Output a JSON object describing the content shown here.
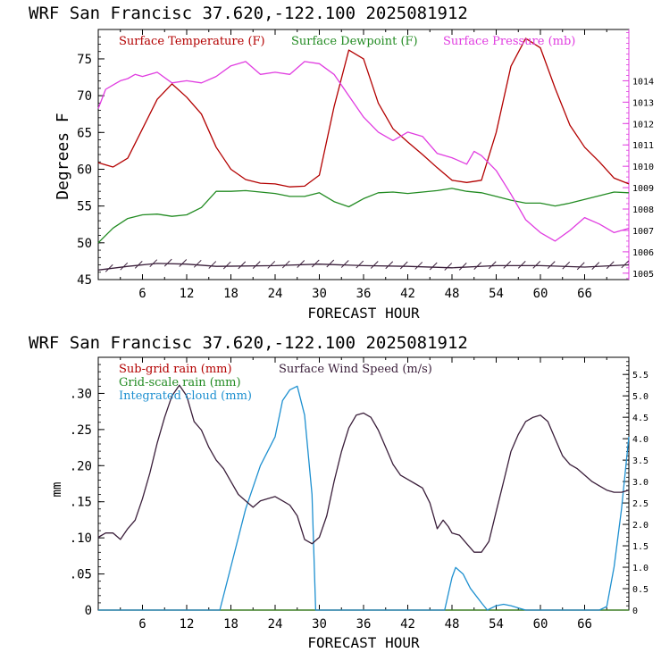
{
  "chart_data": [
    {
      "type": "line",
      "title": "WRF   San Francisc  37.620,-122.100  2025081912",
      "xlabel": "FORECAST HOUR",
      "ylabel": "Degrees F",
      "x_ticks": [
        "6",
        "12",
        "18",
        "24",
        "30",
        "36",
        "42",
        "48",
        "54",
        "60",
        "66"
      ],
      "xlim": [
        0,
        72
      ],
      "ylim": [
        45,
        79
      ],
      "y_ticks": [
        "45",
        "50",
        "55",
        "60",
        "65",
        "70",
        "75"
      ],
      "y2lim": [
        1004.7,
        1016.4
      ],
      "y2_ticks": [
        "1005",
        "1006",
        "1007",
        "1008",
        "1009",
        "1010",
        "1011",
        "1012",
        "1013",
        "1014"
      ],
      "series": [
        {
          "name": "Surface Temperature (F)",
          "color": "#b30000",
          "axis": "left",
          "points": [
            [
              0,
              60.9
            ],
            [
              2,
              60.3
            ],
            [
              4,
              61.5
            ],
            [
              6,
              65.5
            ],
            [
              8,
              69.5
            ],
            [
              10,
              71.6
            ],
            [
              12,
              69.8
            ],
            [
              14,
              67.5
            ],
            [
              16,
              63.0
            ],
            [
              18,
              60.0
            ],
            [
              20,
              58.6
            ],
            [
              22,
              58.1
            ],
            [
              24,
              58.0
            ],
            [
              26,
              57.6
            ],
            [
              28,
              57.7
            ],
            [
              30,
              59.2
            ],
            [
              32,
              68.5
            ],
            [
              34,
              76.2
            ],
            [
              36,
              75.0
            ],
            [
              38,
              69.0
            ],
            [
              40,
              65.5
            ],
            [
              42,
              63.7
            ],
            [
              44,
              62.0
            ],
            [
              46,
              60.2
            ],
            [
              48,
              58.5
            ],
            [
              50,
              58.2
            ],
            [
              52,
              58.5
            ],
            [
              54,
              65.0
            ],
            [
              56,
              74.0
            ],
            [
              58,
              77.8
            ],
            [
              60,
              76.5
            ],
            [
              62,
              71.0
            ],
            [
              64,
              66.0
            ],
            [
              66,
              63.0
            ],
            [
              68,
              61.0
            ],
            [
              70,
              58.8
            ],
            [
              72,
              58.0
            ]
          ]
        },
        {
          "name": "Surface Dewpoint (F)",
          "color": "#228b22",
          "axis": "left",
          "points": [
            [
              0,
              50.0
            ],
            [
              2,
              52.0
            ],
            [
              4,
              53.3
            ],
            [
              6,
              53.8
            ],
            [
              8,
              53.9
            ],
            [
              10,
              53.6
            ],
            [
              12,
              53.8
            ],
            [
              14,
              54.8
            ],
            [
              16,
              57.0
            ],
            [
              18,
              57.0
            ],
            [
              20,
              57.1
            ],
            [
              22,
              56.9
            ],
            [
              24,
              56.7
            ],
            [
              26,
              56.3
            ],
            [
              28,
              56.3
            ],
            [
              30,
              56.8
            ],
            [
              32,
              55.6
            ],
            [
              34,
              54.9
            ],
            [
              36,
              56.0
            ],
            [
              38,
              56.8
            ],
            [
              40,
              56.9
            ],
            [
              42,
              56.7
            ],
            [
              44,
              56.9
            ],
            [
              46,
              57.1
            ],
            [
              48,
              57.4
            ],
            [
              50,
              57.0
            ],
            [
              52,
              56.8
            ],
            [
              54,
              56.3
            ],
            [
              56,
              55.8
            ],
            [
              58,
              55.4
            ],
            [
              60,
              55.4
            ],
            [
              62,
              55.0
            ],
            [
              64,
              55.4
            ],
            [
              66,
              55.9
            ],
            [
              68,
              56.4
            ],
            [
              70,
              56.9
            ],
            [
              72,
              56.8
            ]
          ]
        },
        {
          "name": "Surface Pressure (mb)",
          "color": "#e03ce0",
          "axis": "right",
          "points": [
            [
              0,
              1012.7
            ],
            [
              1,
              1013.6
            ],
            [
              2,
              1013.8
            ],
            [
              3,
              1014.0
            ],
            [
              4,
              1014.1
            ],
            [
              5,
              1014.3
            ],
            [
              6,
              1014.2
            ],
            [
              8,
              1014.4
            ],
            [
              10,
              1013.9
            ],
            [
              12,
              1014.0
            ],
            [
              14,
              1013.9
            ],
            [
              16,
              1014.2
            ],
            [
              18,
              1014.7
            ],
            [
              20,
              1014.9
            ],
            [
              22,
              1014.3
            ],
            [
              24,
              1014.4
            ],
            [
              26,
              1014.3
            ],
            [
              28,
              1014.9
            ],
            [
              30,
              1014.8
            ],
            [
              32,
              1014.3
            ],
            [
              34,
              1013.3
            ],
            [
              36,
              1012.3
            ],
            [
              38,
              1011.6
            ],
            [
              40,
              1011.2
            ],
            [
              42,
              1011.6
            ],
            [
              44,
              1011.4
            ],
            [
              46,
              1010.6
            ],
            [
              48,
              1010.4
            ],
            [
              50,
              1010.1
            ],
            [
              51,
              1010.7
            ],
            [
              52,
              1010.5
            ],
            [
              54,
              1009.8
            ],
            [
              56,
              1008.7
            ],
            [
              58,
              1007.5
            ],
            [
              60,
              1006.9
            ],
            [
              62,
              1006.5
            ],
            [
              64,
              1007.0
            ],
            [
              66,
              1007.6
            ],
            [
              68,
              1007.3
            ],
            [
              70,
              1006.9
            ],
            [
              72,
              1007.1
            ]
          ]
        }
      ],
      "wind_barbs": {
        "color": "#3a1e3a",
        "baseline_y": 46.8,
        "count": 36,
        "curve": [
          [
            0,
            46.3
          ],
          [
            4,
            46.8
          ],
          [
            8,
            47.2
          ],
          [
            12,
            47.1
          ],
          [
            16,
            46.8
          ],
          [
            24,
            46.9
          ],
          [
            30,
            47.1
          ],
          [
            36,
            46.9
          ],
          [
            42,
            46.8
          ],
          [
            48,
            46.6
          ],
          [
            54,
            46.9
          ],
          [
            60,
            46.9
          ],
          [
            66,
            46.7
          ],
          [
            72,
            47.0
          ]
        ]
      }
    },
    {
      "type": "line",
      "title": "WRF   San Francisc  37.620,-122.100  2025081912",
      "xlabel": "FORECAST HOUR",
      "ylabel": "mm",
      "x_ticks": [
        "6",
        "12",
        "18",
        "24",
        "30",
        "36",
        "42",
        "48",
        "54",
        "60",
        "66"
      ],
      "xlim": [
        0,
        72
      ],
      "ylim": [
        0,
        0.35
      ],
      "y_ticks": [
        "0",
        ".05",
        ".10",
        ".15",
        ".20",
        ".25",
        ".30"
      ],
      "y2lim": [
        0,
        5.9
      ],
      "y2_ticks": [
        "0",
        "0.5",
        "1.0",
        "1.5",
        "2.0",
        "2.5",
        "3.0",
        "3.5",
        "4.0",
        "4.5",
        "5.0",
        "5.5"
      ],
      "series": [
        {
          "name": "Sub-grid rain (mm)",
          "color": "#b30000",
          "axis": "left",
          "points": [
            [
              0,
              0
            ],
            [
              72,
              0
            ]
          ]
        },
        {
          "name": "Grid-scale rain (mm)",
          "color": "#228b22",
          "axis": "left",
          "points": [
            [
              0,
              0
            ],
            [
              72,
              0
            ]
          ]
        },
        {
          "name": "Integrated cloud (mm)",
          "color": "#1e90d0",
          "axis": "left",
          "points": [
            [
              0,
              0
            ],
            [
              16.5,
              0
            ],
            [
              18,
              0.06
            ],
            [
              20,
              0.14
            ],
            [
              22,
              0.2
            ],
            [
              24,
              0.24
            ],
            [
              25,
              0.29
            ],
            [
              26,
              0.305
            ],
            [
              27,
              0.31
            ],
            [
              28,
              0.27
            ],
            [
              29,
              0.16
            ],
            [
              29.5,
              0.0
            ],
            [
              47,
              0
            ],
            [
              48,
              0.045
            ],
            [
              48.5,
              0.059
            ],
            [
              49.5,
              0.05
            ],
            [
              50.5,
              0.03
            ],
            [
              52,
              0.01
            ],
            [
              52.8,
              0.0
            ],
            [
              54,
              0.006
            ],
            [
              55,
              0.008
            ],
            [
              56,
              0.006
            ],
            [
              57,
              0.003
            ],
            [
              58,
              0
            ],
            [
              68,
              0
            ],
            [
              69,
              0.005
            ],
            [
              70,
              0.06
            ],
            [
              71,
              0.14
            ],
            [
              72,
              0.24
            ]
          ]
        },
        {
          "name": "Surface Wind Speed (m/s)",
          "color": "#3a1e3a",
          "axis": "right",
          "points": [
            [
              0,
              1.7
            ],
            [
              1,
              1.8
            ],
            [
              2,
              1.8
            ],
            [
              3,
              1.65
            ],
            [
              4,
              1.9
            ],
            [
              5,
              2.1
            ],
            [
              6,
              2.6
            ],
            [
              7,
              3.2
            ],
            [
              8,
              3.9
            ],
            [
              9,
              4.5
            ],
            [
              10,
              5.0
            ],
            [
              11,
              5.25
            ],
            [
              12,
              5.0
            ],
            [
              13,
              4.4
            ],
            [
              14,
              4.2
            ],
            [
              15,
              3.8
            ],
            [
              16,
              3.5
            ],
            [
              17,
              3.3
            ],
            [
              18,
              3.0
            ],
            [
              19,
              2.7
            ],
            [
              20,
              2.55
            ],
            [
              21,
              2.4
            ],
            [
              22,
              2.55
            ],
            [
              23,
              2.6
            ],
            [
              24,
              2.65
            ],
            [
              25,
              2.55
            ],
            [
              26,
              2.45
            ],
            [
              27,
              2.2
            ],
            [
              28,
              1.65
            ],
            [
              29,
              1.55
            ],
            [
              30,
              1.7
            ],
            [
              31,
              2.2
            ],
            [
              32,
              3.0
            ],
            [
              33,
              3.7
            ],
            [
              34,
              4.25
            ],
            [
              35,
              4.55
            ],
            [
              36,
              4.6
            ],
            [
              37,
              4.5
            ],
            [
              38,
              4.2
            ],
            [
              39,
              3.8
            ],
            [
              40,
              3.4
            ],
            [
              41,
              3.15
            ],
            [
              42,
              3.05
            ],
            [
              43,
              2.95
            ],
            [
              44,
              2.85
            ],
            [
              45,
              2.5
            ],
            [
              46,
              1.9
            ],
            [
              46.8,
              2.1
            ],
            [
              47.5,
              1.95
            ],
            [
              48,
              1.8
            ],
            [
              49,
              1.75
            ],
            [
              50,
              1.55
            ],
            [
              51,
              1.35
            ],
            [
              52,
              1.35
            ],
            [
              53,
              1.6
            ],
            [
              54,
              2.3
            ],
            [
              55,
              3.0
            ],
            [
              56,
              3.7
            ],
            [
              57,
              4.1
            ],
            [
              58,
              4.4
            ],
            [
              59,
              4.5
            ],
            [
              60,
              4.55
            ],
            [
              61,
              4.4
            ],
            [
              62,
              4.0
            ],
            [
              63,
              3.6
            ],
            [
              64,
              3.4
            ],
            [
              65,
              3.3
            ],
            [
              66,
              3.15
            ],
            [
              67,
              3.0
            ],
            [
              68,
              2.9
            ],
            [
              69,
              2.8
            ],
            [
              70,
              2.75
            ],
            [
              71,
              2.75
            ],
            [
              72,
              2.8
            ]
          ]
        }
      ]
    }
  ]
}
